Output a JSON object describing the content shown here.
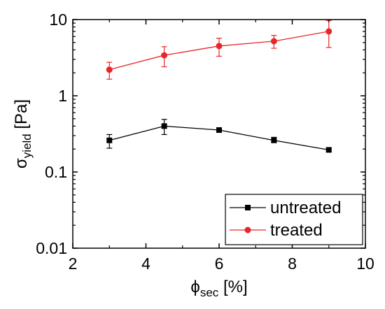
{
  "chart_data": {
    "type": "line",
    "x": [
      3,
      4.5,
      6,
      7.5,
      9
    ],
    "xlim": [
      2,
      10
    ],
    "ylim": [
      0.01,
      10
    ],
    "yscale": "log",
    "xticks": [
      2,
      4,
      6,
      8,
      10
    ],
    "xtick_labels": [
      "2",
      "4",
      "6",
      "8",
      "10"
    ],
    "yticks": [
      0.01,
      0.1,
      1,
      10
    ],
    "ytick_labels": [
      "0.01",
      "0.1",
      "1",
      "10"
    ],
    "xlabel": {
      "symbol": "ϕ",
      "sub": "sec",
      "unit": " [%]"
    },
    "ylabel": {
      "symbol": "σ",
      "sub": "yield",
      "unit": " [Pa]"
    },
    "grid": false,
    "legend_position": "bottom-right",
    "series": [
      {
        "name": "untreated",
        "color": "#000000",
        "marker": "square",
        "values": [
          0.26,
          0.4,
          0.355,
          0.26,
          0.195
        ],
        "err_low": [
          0.205,
          0.31,
          0.34,
          0.245,
          0.188
        ],
        "err_high": [
          0.31,
          0.49,
          0.37,
          0.285,
          0.202
        ]
      },
      {
        "name": "treated",
        "color": "#e8262a",
        "marker": "circle",
        "values": [
          2.2,
          3.4,
          4.5,
          5.2,
          7.0
        ],
        "err_low": [
          1.65,
          2.4,
          3.3,
          4.2,
          4.3
        ],
        "err_high": [
          2.75,
          4.4,
          5.7,
          6.2,
          9.7
        ]
      }
    ]
  }
}
